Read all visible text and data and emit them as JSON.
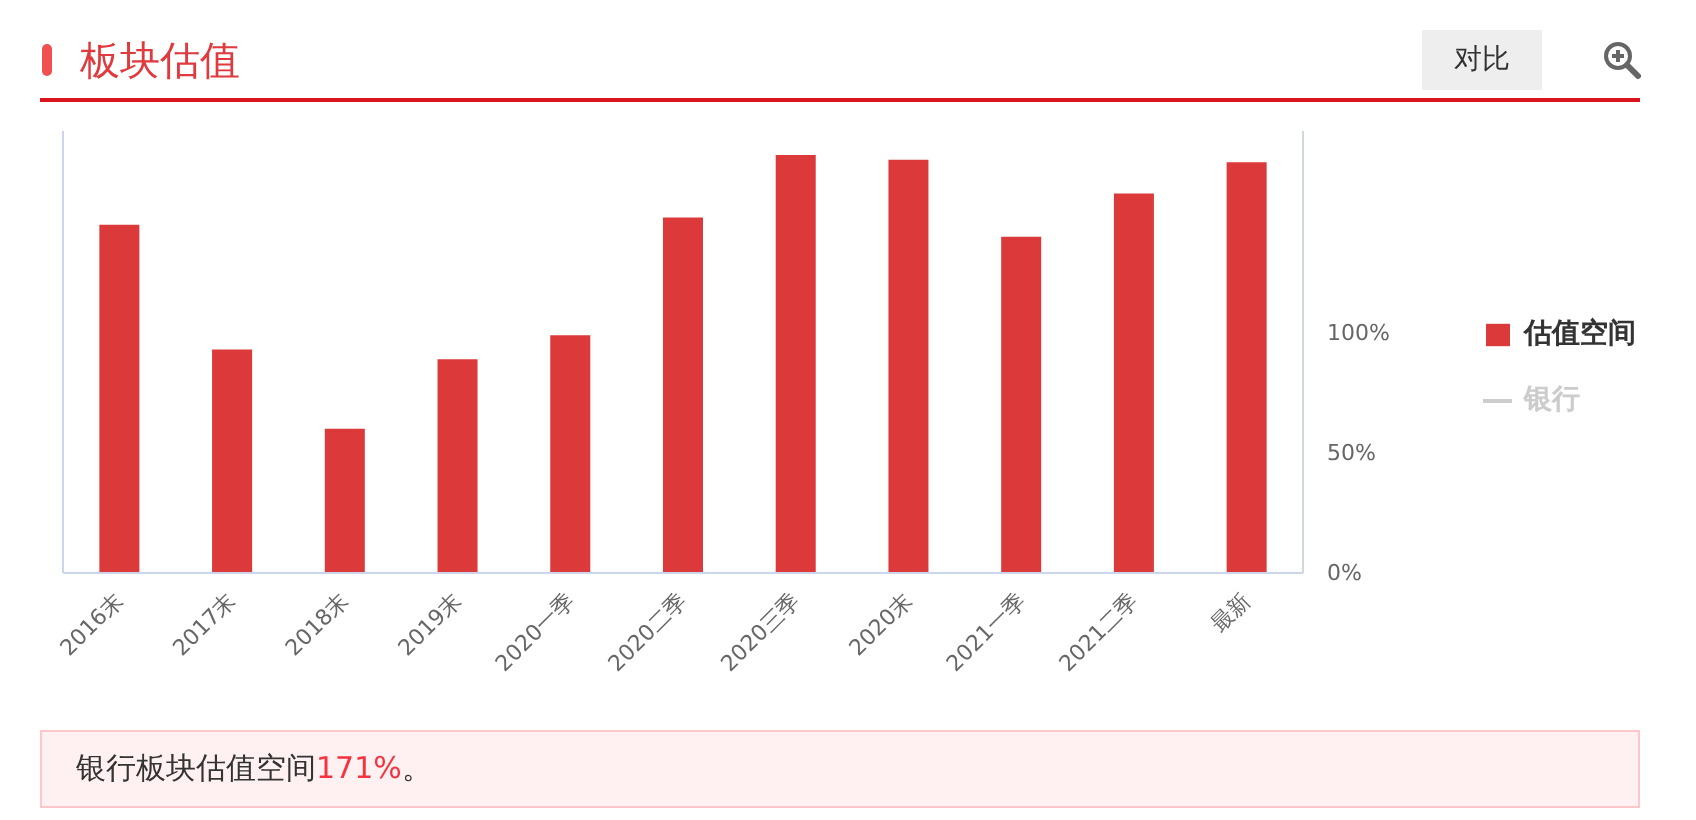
{
  "chart_data": {
    "type": "bar",
    "title": "板块估值",
    "categories": [
      "2016末",
      "2017末",
      "2018末",
      "2019末",
      "2020一季",
      "2020二季",
      "2020三季",
      "2020末",
      "2021一季",
      "2021二季",
      "最新"
    ],
    "series": [
      {
        "name": "估值空间",
        "color": "#dc393b",
        "values": [
          145,
          93,
          60,
          89,
          99,
          148,
          174,
          172,
          140,
          158,
          171
        ]
      },
      {
        "name": "银行",
        "type": "line",
        "color": "#cccccc",
        "values": [
          null,
          null,
          null,
          null,
          null,
          null,
          null,
          null,
          null,
          null,
          null
        ]
      }
    ],
    "ylim": [
      0,
      184
    ],
    "yticks": [
      {
        "value": 0,
        "label": "0%"
      },
      {
        "value": 50,
        "label": "50%"
      },
      {
        "value": 100,
        "label": "100%"
      }
    ],
    "grid": false,
    "legend": "right",
    "annotations": [
      "对比",
      "银行板块估值空间171%。"
    ]
  }
}
